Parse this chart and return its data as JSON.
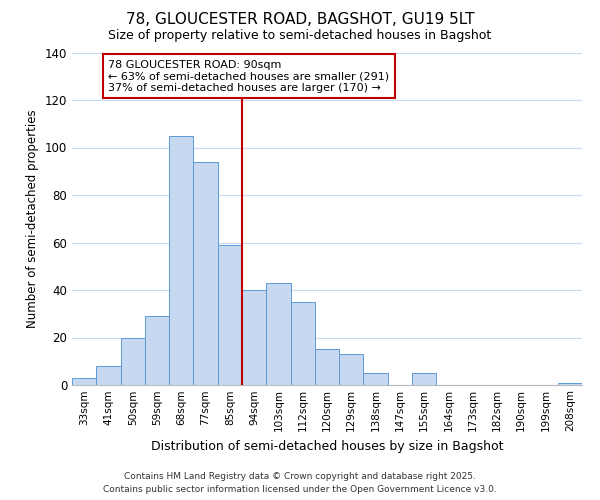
{
  "title": "78, GLOUCESTER ROAD, BAGSHOT, GU19 5LT",
  "subtitle": "Size of property relative to semi-detached houses in Bagshot",
  "xlabel": "Distribution of semi-detached houses by size in Bagshot",
  "ylabel": "Number of semi-detached properties",
  "bar_labels": [
    "33sqm",
    "41sqm",
    "50sqm",
    "59sqm",
    "68sqm",
    "77sqm",
    "85sqm",
    "94sqm",
    "103sqm",
    "112sqm",
    "120sqm",
    "129sqm",
    "138sqm",
    "147sqm",
    "155sqm",
    "164sqm",
    "173sqm",
    "182sqm",
    "190sqm",
    "199sqm",
    "208sqm"
  ],
  "bar_values": [
    3,
    8,
    20,
    29,
    105,
    94,
    59,
    40,
    43,
    35,
    15,
    13,
    5,
    0,
    5,
    0,
    0,
    0,
    0,
    0,
    1
  ],
  "bar_color": "#c6d9f1",
  "bar_edge_color": "#5b9bd5",
  "vline_color": "#c00000",
  "annotation_title": "78 GLOUCESTER ROAD: 90sqm",
  "annotation_line1": "← 63% of semi-detached houses are smaller (291)",
  "annotation_line2": "37% of semi-detached houses are larger (170) →",
  "annotation_box_color": "#c00000",
  "ylim": [
    0,
    140
  ],
  "yticks": [
    0,
    20,
    40,
    60,
    80,
    100,
    120,
    140
  ],
  "footer1": "Contains HM Land Registry data © Crown copyright and database right 2025.",
  "footer2": "Contains public sector information licensed under the Open Government Licence v3.0.",
  "bg_color": "#ffffff",
  "grid_color": "#c8daf0"
}
